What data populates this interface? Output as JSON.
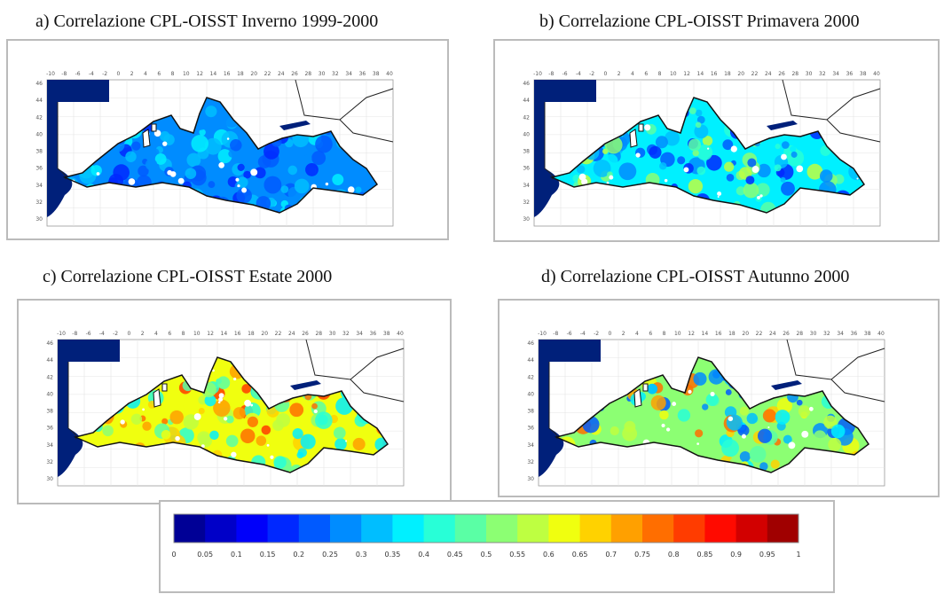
{
  "panels": [
    {
      "title": "a)  Correlazione CPL-OISST Inverno 1999-2000"
    },
    {
      "title": "b)  Correlazione CPL-OISST Primavera 2000"
    },
    {
      "title": "c)  Correlazione CPL-OISST Estate 2000"
    },
    {
      "title": "d)  Correlazione CPL-OISST Autunno 2000"
    }
  ],
  "map_axes": {
    "longitude": [
      -10,
      -8,
      -6,
      -4,
      -2,
      0,
      2,
      4,
      6,
      8,
      10,
      12,
      14,
      16,
      18,
      20,
      22,
      24,
      26,
      28,
      30,
      32,
      34,
      36,
      38,
      40
    ],
    "latitude": [
      46,
      44,
      42,
      40,
      38,
      36,
      34,
      32,
      30
    ]
  },
  "colorbar": {
    "ticks": [
      0,
      0.05,
      0.1,
      0.15,
      0.2,
      0.25,
      0.3,
      0.35,
      0.4,
      0.45,
      0.5,
      0.55,
      0.6,
      0.65,
      0.7,
      0.75,
      0.8,
      0.85,
      0.9,
      0.95,
      1
    ],
    "colors": [
      "#000096",
      "#0000c8",
      "#0000fa",
      "#0028ff",
      "#005aff",
      "#008cff",
      "#00beff",
      "#00f0ff",
      "#28ffd7",
      "#5affa5",
      "#8cff73",
      "#beff41",
      "#f0ff0f",
      "#ffd200",
      "#ffa000",
      "#ff6e00",
      "#ff3c00",
      "#ff0a00",
      "#d20000",
      "#a00000"
    ]
  }
}
